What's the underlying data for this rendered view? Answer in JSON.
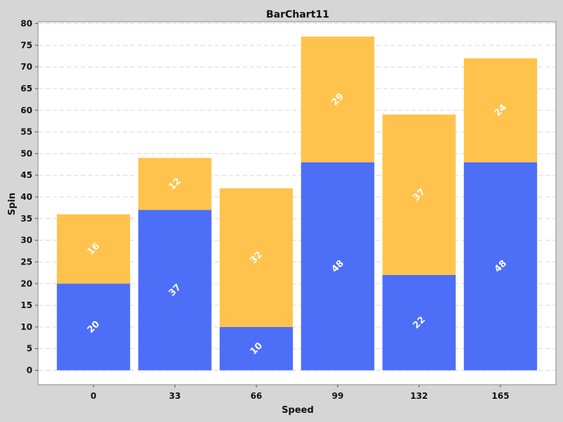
{
  "chart_data": {
    "type": "bar",
    "stacked": true,
    "title": "BarChart11",
    "xlabel": "Speed",
    "ylabel": "Spin",
    "categories": [
      "0",
      "33",
      "66",
      "99",
      "132",
      "165"
    ],
    "ylim": [
      0,
      80
    ],
    "yticks": [
      0,
      5,
      10,
      15,
      20,
      25,
      30,
      35,
      40,
      45,
      50,
      55,
      60,
      65,
      70,
      75,
      80
    ],
    "grid": true,
    "series": [
      {
        "values": [
          20,
          37,
          10,
          48,
          22,
          48
        ],
        "color": "#4d6ef7"
      },
      {
        "values": [
          16,
          12,
          32,
          29,
          37,
          24
        ],
        "color": "#ffc34d"
      }
    ],
    "colors": {
      "page_background": "#d6d6d6",
      "plot_background": "#ffffff",
      "gridline": "#d8d8d8",
      "data_label": "#ffffff"
    }
  }
}
